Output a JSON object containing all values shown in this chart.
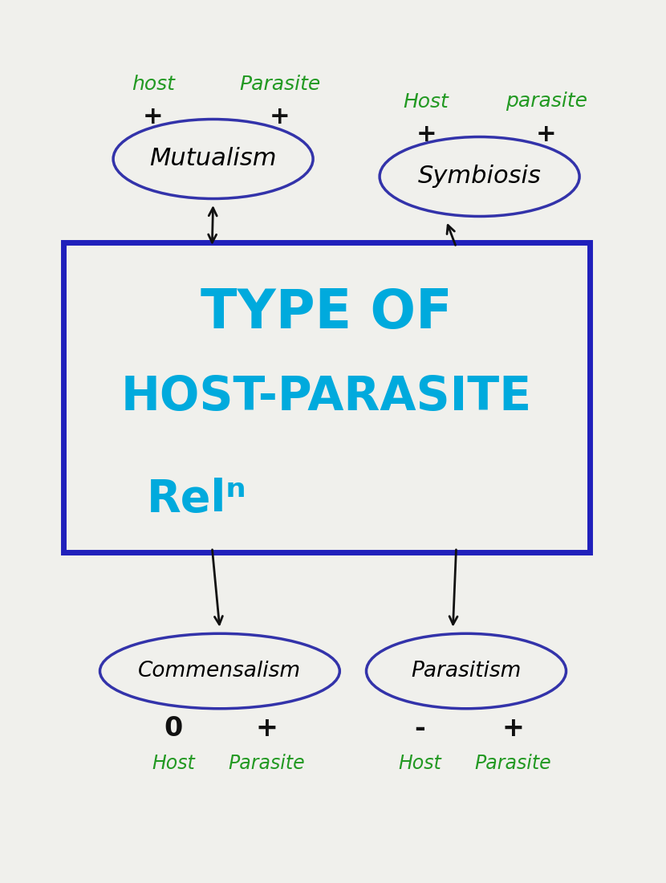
{
  "bg_color": "#dcdcd8",
  "paper_color": "#e8e8e4",
  "title_text_line1": "TYPE OF",
  "title_text_line2": "HOST-PARASITE",
  "title_text_line3": "Relⁿ",
  "title_box_color": "#2020bb",
  "title_text_color": "#00aadd",
  "mutualism_label": "Mutualism",
  "ellipse_color": "#3333aa",
  "symbiosis_label": "Symbiosis",
  "commensalism_label": "Commensalism",
  "parasitism_label": "Parasitism",
  "arrow_color": "#111111",
  "mutualism_host_label": "host",
  "mutualism_parasite_label": "Parasite",
  "mutualism_host_sign": "+",
  "mutualism_parasite_sign": "+",
  "symbiosis_host_label": "Host",
  "symbiosis_parasite_label": "parasite",
  "symbiosis_host_sign": "+",
  "symbiosis_parasite_sign": "+",
  "commensalism_host_label": "Host",
  "commensalism_parasite_label": "Parasite",
  "commensalism_host_sign": "0",
  "commensalism_parasite_sign": "+",
  "parasitism_host_label": "Host",
  "parasitism_parasite_label": "Parasite",
  "parasitism_host_sign": "-",
  "parasitism_parasite_sign": "+",
  "label_color": "#229922",
  "sign_color": "#111111",
  "figw": 8.3,
  "figh": 11.0,
  "dpi": 100
}
